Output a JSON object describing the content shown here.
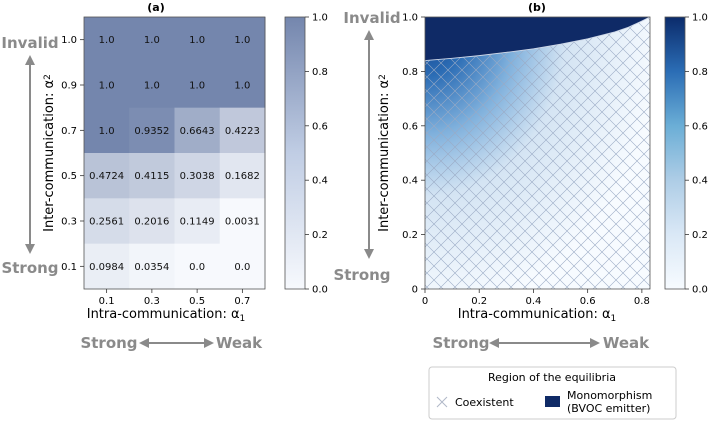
{
  "chart_data": [
    {
      "type": "heatmap",
      "title": "(a)",
      "xlabel": "Intra-communication: α",
      "xlabel_sub": "1",
      "ylabel": "Inter-communication: α",
      "ylabel_sub": "2",
      "x_categories": [
        "0.1",
        "0.3",
        "0.5",
        "0.7"
      ],
      "y_categories": [
        "1.0",
        "0.9",
        "0.7",
        "0.5",
        "0.3",
        "0.1"
      ],
      "values": [
        [
          1.0,
          1.0,
          1.0,
          1.0
        ],
        [
          1.0,
          1.0,
          1.0,
          1.0
        ],
        [
          1.0,
          0.9352,
          0.6643,
          0.4223
        ],
        [
          0.4724,
          0.4115,
          0.3038,
          0.1682
        ],
        [
          0.2561,
          0.2016,
          0.1149,
          0.0031
        ],
        [
          0.0984,
          0.0354,
          0.0,
          0.0
        ]
      ],
      "cell_labels": [
        [
          "1.0",
          "1.0",
          "1.0",
          "1.0"
        ],
        [
          "1.0",
          "1.0",
          "1.0",
          "1.0"
        ],
        [
          "1.0",
          "0.9352",
          "0.6643",
          "0.4223"
        ],
        [
          "0.4724",
          "0.4115",
          "0.3038",
          "0.1682"
        ],
        [
          "0.2561",
          "0.2016",
          "0.1149",
          "0.0031"
        ],
        [
          "0.0984",
          "0.0354",
          "0.0",
          "0.0"
        ]
      ],
      "colorbar": {
        "min": 0.0,
        "max": 1.0,
        "ticks": [
          "0.0",
          "0.2",
          "0.4",
          "0.6",
          "0.8",
          "1.0"
        ]
      },
      "annotations": {
        "y_top": "Invalid",
        "y_bottom": "Strong",
        "x_left": "Strong",
        "x_right": "Weak"
      }
    },
    {
      "type": "area",
      "title": "(b)",
      "xlabel": "Intra-communication: α",
      "xlabel_sub": "1",
      "ylabel": "Inter-communication: α",
      "ylabel_sub": "2",
      "xlim": [
        0,
        0.83
      ],
      "ylim": [
        0,
        1.0
      ],
      "x_ticks": [
        "0",
        "0.2",
        "0.4",
        "0.6",
        "0.8"
      ],
      "y_ticks": [
        "0",
        "0.2",
        "0.4",
        "0.6",
        "0.8",
        "1.0"
      ],
      "boundary_curve": {
        "x": [
          0,
          0.1,
          0.2,
          0.3,
          0.4,
          0.5,
          0.6,
          0.7,
          0.75,
          0.8,
          0.83
        ],
        "y": [
          0.84,
          0.848,
          0.858,
          0.87,
          0.883,
          0.9,
          0.92,
          0.945,
          0.962,
          0.985,
          1.0
        ]
      },
      "regions": [
        "Coexistent",
        "Monomorphism (BVOC emitter)"
      ],
      "colorbar": {
        "min": 0.0,
        "max": 1.0,
        "ticks": [
          "0.0",
          "0.2",
          "0.4",
          "0.6",
          "0.8",
          "1.0"
        ]
      },
      "annotations": {
        "y_top": "Invalid",
        "y_bottom": "Strong",
        "x_left": "Strong",
        "x_right": "Weak"
      },
      "legend": {
        "title": "Region of the equilibria",
        "items": [
          {
            "label": "Coexistent",
            "marker": "hatch-x"
          },
          {
            "label": "Monomorphism",
            "label2": "(BVOC emitter)",
            "marker": "solid",
            "color": "#0f2a66"
          }
        ]
      }
    }
  ],
  "colors": {
    "cmap_low": "#f7fbff",
    "cmap_high": "#0b2b6b",
    "heat_high": "#7486ad",
    "annotation": "#8a8a8a",
    "curve": "#cfd8e8"
  }
}
